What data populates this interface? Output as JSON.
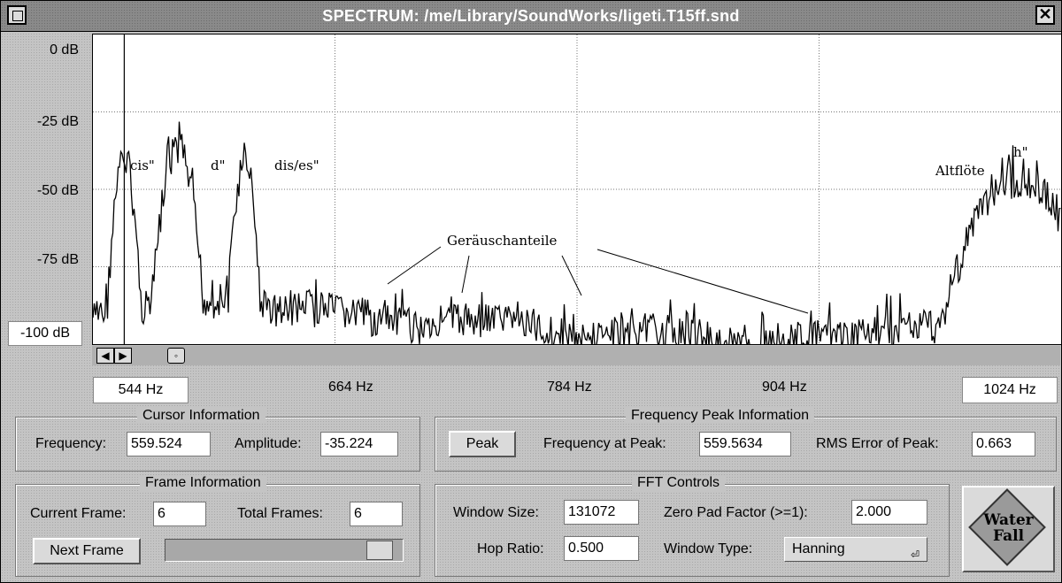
{
  "window": {
    "title": "SPECTRUM:  /me/Library/SoundWorks/ligeti.T15ff.snd",
    "close_glyph": "✕"
  },
  "y_axis": {
    "labels": [
      "0 dB",
      "-25 dB",
      "-50 dB",
      "-75 dB"
    ],
    "bottom_label": "-100 dB"
  },
  "x_axis": {
    "left_label": "544 Hz",
    "labels": [
      "664 Hz",
      "784 Hz",
      "904 Hz"
    ],
    "right_label": "1024 Hz"
  },
  "annotations": {
    "cis": "cis\"",
    "d": "d\"",
    "dis": "dis/es\"",
    "noise": "Geräuschanteile",
    "altfloete": "Altflöte",
    "h": "h\""
  },
  "scroll": {
    "left_glyph": "◀",
    "right_glyph": "▶",
    "extra_glyph": "◦"
  },
  "cursor_info": {
    "title": "Cursor Information",
    "frequency_label": "Frequency:",
    "frequency_value": "559.524",
    "amplitude_label": "Amplitude:",
    "amplitude_value": "-35.224"
  },
  "peak_info": {
    "title": "Frequency Peak Information",
    "peak_button": "Peak",
    "freq_label": "Frequency at Peak:",
    "freq_value": "559.5634",
    "rms_label": "RMS Error of Peak:",
    "rms_value": "0.663"
  },
  "frame_info": {
    "title": "Frame Information",
    "current_label": "Current Frame:",
    "current_value": "6",
    "total_label": "Total Frames:",
    "total_value": "6",
    "next_button": "Next Frame",
    "slider_position": 1.0
  },
  "fft": {
    "title": "FFT Controls",
    "window_size_label": "Window Size:",
    "window_size_value": "131072",
    "zero_pad_label": "Zero Pad Factor (>=1):",
    "zero_pad_value": "2.000",
    "hop_label": "Hop Ratio:",
    "hop_value": "0.500",
    "window_type_label": "Window Type:",
    "window_type_value": "Hanning",
    "window_type_arrow": "⏎"
  },
  "waterfall": {
    "line1": "Water",
    "line2": "Fall"
  },
  "chart_data": {
    "type": "line",
    "x_range_hz": [
      544,
      1024
    ],
    "y_range_db": [
      -100,
      0
    ],
    "grid": true,
    "cursor_hz": 559.524,
    "peaks": [
      {
        "hz": 559.5,
        "db": -35
      },
      {
        "hz": 586,
        "db": -32
      },
      {
        "hz": 619,
        "db": -37
      },
      {
        "hz": 1003,
        "db": -41
      }
    ]
  }
}
